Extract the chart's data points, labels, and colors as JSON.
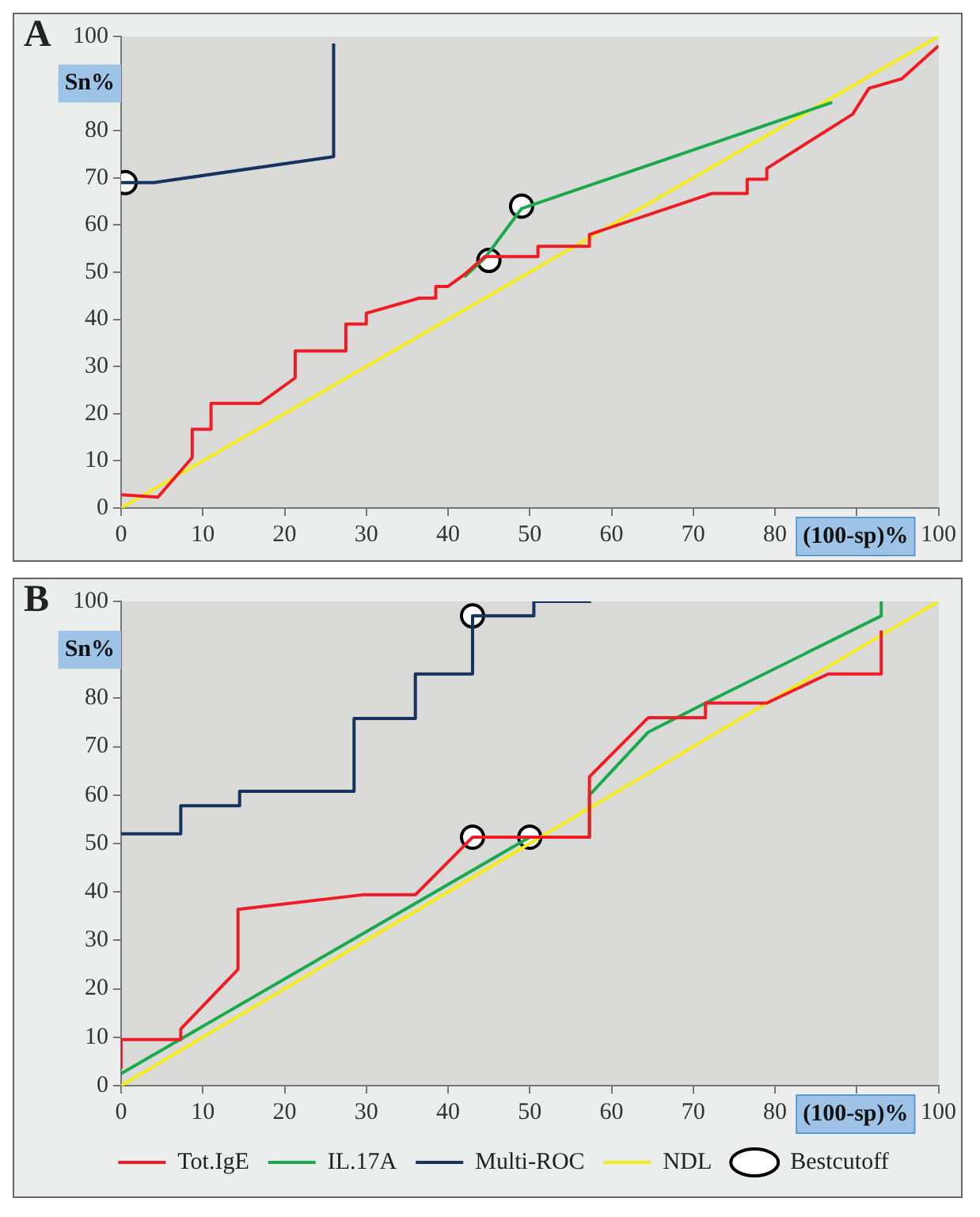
{
  "chart_data": [
    {
      "type": "line",
      "title": "A",
      "xlabel": "(100-sp)%",
      "ylabel": "Sn%",
      "xlim": [
        0,
        100
      ],
      "ylim": [
        0,
        100
      ],
      "xticks": [
        0,
        10,
        20,
        30,
        40,
        50,
        60,
        70,
        80,
        {
          "value": 90,
          "label": null
        },
        100
      ],
      "yticks": [
        0,
        10,
        20,
        30,
        40,
        50,
        60,
        70,
        80,
        {
          "value": 90,
          "label": null
        },
        100
      ],
      "series": [
        {
          "color": "#ee1c25",
          "x": [
            0,
            4.5,
            8.7,
            8.7,
            11,
            11,
            17,
            21.3,
            21.3,
            27.5,
            27.5,
            30,
            30,
            36.5,
            38.5,
            38.5,
            40,
            42,
            44.5,
            51,
            51,
            57.3,
            57.3,
            72.3,
            76.6,
            76.6,
            79,
            79,
            89.5,
            91.5,
            95.5,
            100
          ],
          "values": [
            2.8,
            2.3,
            10.7,
            16.7,
            16.7,
            22.2,
            22.2,
            27.6,
            33.3,
            33.3,
            39,
            39,
            41.3,
            44.5,
            44.5,
            47,
            47,
            49.5,
            53.3,
            53.3,
            55.5,
            55.5,
            58,
            66.7,
            66.7,
            69.7,
            69.7,
            72,
            83.5,
            89,
            91,
            98
          ]
        },
        {
          "color": "#1aaa4b",
          "x": [
            42,
            44.5,
            49,
            87
          ],
          "values": [
            49,
            53,
            63.5,
            86
          ]
        },
        {
          "color": "#14335e",
          "x": [
            0,
            4,
            26,
            26
          ],
          "values": [
            69,
            69,
            74.5,
            98.5
          ]
        },
        {
          "color": "#f5eb1a",
          "x": [
            0,
            100
          ],
          "values": [
            0,
            100
          ]
        },
        {
          "type": "scatter",
          "marker": "circle",
          "color": "#ffffff",
          "x": [
            0.5,
            45,
            49
          ],
          "values": [
            69,
            52.5,
            64
          ]
        }
      ]
    },
    {
      "type": "line",
      "title": "B",
      "xlabel": "(100-sp)%",
      "ylabel": "Sn%",
      "xlim": [
        0,
        100
      ],
      "ylim": [
        0,
        100
      ],
      "xticks": [
        0,
        10,
        20,
        30,
        40,
        50,
        60,
        70,
        80,
        {
          "value": 90,
          "label": null
        },
        100
      ],
      "yticks": [
        0,
        10,
        20,
        30,
        40,
        50,
        60,
        70,
        80,
        {
          "value": 90,
          "label": null
        },
        100
      ],
      "legend": "bottom",
      "series": [
        {
          "name": "Tot.IgE",
          "color": "#ee1c25",
          "x": [
            0,
            0,
            7.3,
            7.3,
            14.3,
            14.3,
            29.5,
            36,
            43,
            50,
            57.3,
            57.3,
            64.5,
            71.5,
            71.5,
            79,
            86.5,
            93,
            93
          ],
          "values": [
            3.5,
            9.5,
            9.5,
            11.7,
            24,
            36.4,
            39.4,
            39.4,
            51.3,
            51.3,
            51.3,
            63.8,
            76,
            76,
            79,
            79,
            85,
            85,
            94
          ]
        },
        {
          "name": "IL.17A",
          "color": "#1aaa4b",
          "x": [
            0,
            50,
            57.3,
            57.3,
            64.5,
            71.5,
            93,
            93
          ],
          "values": [
            2.5,
            51.3,
            51.3,
            60,
            73,
            79,
            97,
            100
          ]
        },
        {
          "name": "Multi-ROC",
          "color": "#14335e",
          "x": [
            0,
            7.3,
            7.3,
            14.5,
            14.5,
            28.5,
            28.5,
            36,
            36,
            43,
            43,
            50.5,
            50.5,
            57.5
          ],
          "values": [
            52,
            52,
            57.8,
            57.8,
            60.8,
            60.8,
            75.8,
            75.8,
            85,
            85,
            97,
            97,
            100,
            100
          ]
        },
        {
          "name": "NDL",
          "color": "#f5eb1a",
          "x": [
            0,
            100
          ],
          "values": [
            0,
            100
          ]
        },
        {
          "name": "Bestcutoff",
          "type": "scatter",
          "marker": "circle",
          "color": "#ffffff",
          "x": [
            43,
            43,
            50
          ],
          "values": [
            97,
            51.3,
            51.3
          ]
        }
      ]
    }
  ]
}
